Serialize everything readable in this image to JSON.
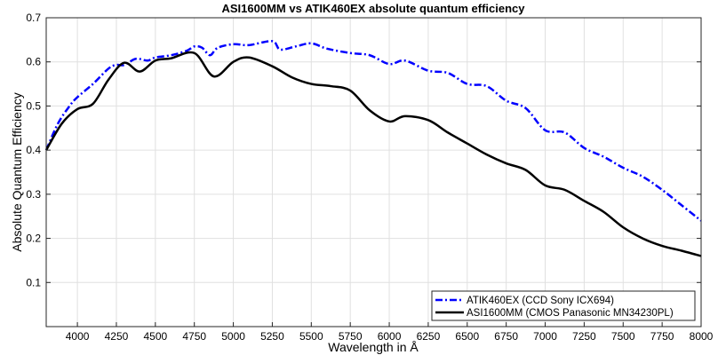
{
  "chart_data": {
    "type": "line",
    "title": "ASI1600MM vs ATIK460EX absolute quantum efficiency",
    "xlabel": "Wavelength in Å",
    "ylabel": "Absolute Quantum Efficiency",
    "xlim": [
      3800,
      8000
    ],
    "ylim": [
      0,
      0.7
    ],
    "xticks": [
      4000,
      4250,
      4500,
      4750,
      5000,
      5250,
      5500,
      5750,
      6000,
      6250,
      6500,
      6750,
      7000,
      7250,
      7500,
      7750,
      8000
    ],
    "yticks": [
      0.1,
      0.2,
      0.3,
      0.4,
      0.5,
      0.6,
      0.7
    ],
    "grid": true,
    "legend_position": "bottom-right",
    "series": [
      {
        "name": "ATIK460EX (CCD Sony ICX694)",
        "color": "#0000ff",
        "style": "dash-dot",
        "x": [
          3800,
          3875,
          3950,
          4000,
          4100,
          4200,
          4250,
          4300,
          4375,
          4450,
          4500,
          4600,
          4700,
          4750,
          4800,
          4850,
          4900,
          5000,
          5100,
          5250,
          5300,
          5400,
          5500,
          5600,
          5750,
          5875,
          6000,
          6100,
          6250,
          6375,
          6500,
          6625,
          6750,
          6875,
          7000,
          7125,
          7250,
          7375,
          7500,
          7625,
          7750,
          7875,
          8000
        ],
        "y": [
          0.4,
          0.46,
          0.5,
          0.52,
          0.55,
          0.585,
          0.593,
          0.593,
          0.607,
          0.603,
          0.61,
          0.615,
          0.625,
          0.635,
          0.632,
          0.615,
          0.632,
          0.64,
          0.638,
          0.647,
          0.628,
          0.635,
          0.642,
          0.63,
          0.62,
          0.615,
          0.595,
          0.603,
          0.58,
          0.575,
          0.55,
          0.545,
          0.512,
          0.495,
          0.445,
          0.44,
          0.405,
          0.385,
          0.36,
          0.34,
          0.31,
          0.275,
          0.24
        ]
      },
      {
        "name": "ASI1600MM (CMOS Panasonic MN34230PL)",
        "color": "#000000",
        "style": "solid",
        "x": [
          3800,
          3900,
          4000,
          4100,
          4200,
          4300,
          4400,
          4500,
          4600,
          4750,
          4875,
          5000,
          5100,
          5250,
          5375,
          5500,
          5625,
          5750,
          5875,
          6000,
          6100,
          6250,
          6375,
          6500,
          6625,
          6750,
          6875,
          7000,
          7125,
          7250,
          7375,
          7500,
          7625,
          7750,
          7875,
          8000
        ],
        "y": [
          0.4,
          0.46,
          0.493,
          0.505,
          0.56,
          0.598,
          0.578,
          0.603,
          0.608,
          0.62,
          0.567,
          0.6,
          0.61,
          0.59,
          0.565,
          0.55,
          0.545,
          0.535,
          0.49,
          0.465,
          0.477,
          0.468,
          0.44,
          0.415,
          0.39,
          0.37,
          0.355,
          0.32,
          0.31,
          0.285,
          0.26,
          0.225,
          0.2,
          0.183,
          0.172,
          0.16
        ]
      }
    ]
  }
}
